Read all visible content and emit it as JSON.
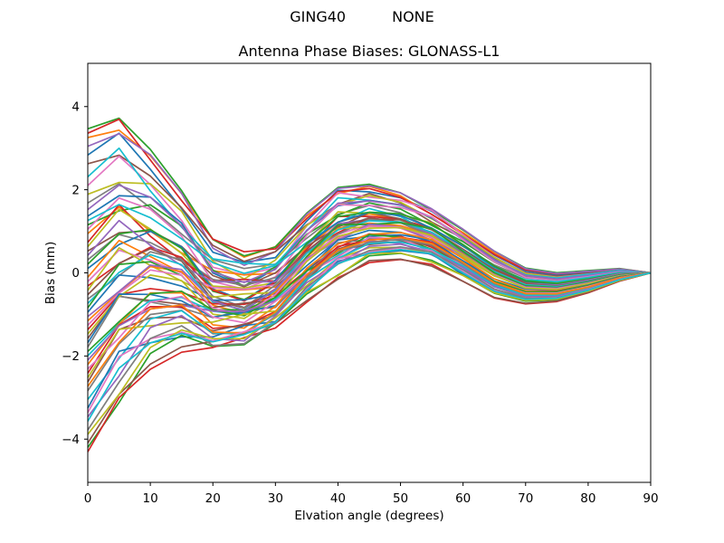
{
  "figure": {
    "suptitle_left": "GING40",
    "suptitle_right": "NONE",
    "title": "Antenna Phase Biases: GLONASS-L1"
  },
  "chart_data": {
    "type": "line",
    "title": "Antenna Phase Biases: GLONASS-L1",
    "suptitle": "GING40          NONE",
    "xlabel": "Elvation angle (degrees)",
    "ylabel": "Bias (mm)",
    "xlim": [
      0,
      90
    ],
    "ylim": [
      -5.04,
      5.04
    ],
    "xticks": [
      0,
      10,
      20,
      30,
      40,
      50,
      60,
      70,
      80,
      90
    ],
    "yticks": [
      -4,
      -2,
      0,
      2,
      4
    ],
    "grid": false,
    "legend": "none",
    "x": [
      0,
      5,
      10,
      15,
      20,
      25,
      30,
      35,
      40,
      45,
      50,
      55,
      60,
      65,
      70,
      75,
      80,
      85,
      90
    ],
    "series_model": "value[k] = base[k] + amp*spread[k] + w1*wiggle1[k] + w2*wiggle2[k]; all curves converge to 0.0 mm at 90 deg; estimated envelope: [-4.3,3.5] at 0 deg, peak 3.8 at 5 deg, trough band [-1.9,0.8] at 20-25 deg, bump band [0.3,2.1] at 40-50 deg, dip band [-0.7,0.1] at 65-75 deg",
    "profiles": {
      "base": [
        0.0,
        0.74,
        0.66,
        0.28,
        -0.39,
        -0.51,
        -0.26,
        0.51,
        1.13,
        1.31,
        1.24,
        0.97,
        0.51,
        0.04,
        -0.26,
        -0.3,
        -0.18,
        -0.03,
        0.0
      ],
      "spread": [
        1.05,
        0.92,
        0.68,
        0.49,
        0.36,
        0.29,
        0.26,
        0.27,
        0.28,
        0.24,
        0.2,
        0.16,
        0.15,
        0.14,
        0.11,
        0.09,
        0.07,
        0.04,
        0.0
      ],
      "wiggle1": [
        0.0,
        0.05,
        0.25,
        0.2,
        -0.15,
        -0.2,
        -0.05,
        0.15,
        0.2,
        0.1,
        0.15,
        0.2,
        0.15,
        0.1,
        0.05,
        0.03,
        0.02,
        0.01,
        0.0
      ],
      "wiggle2": [
        0.0,
        -0.3,
        0.2,
        0.3,
        0.1,
        -0.1,
        0.15,
        0.1,
        -0.1,
        0.1,
        0.05,
        -0.05,
        0.05,
        0.05,
        0.03,
        0.02,
        0.01,
        0.0,
        0.0
      ]
    },
    "series": [
      {
        "color": "#1f77b4",
        "amp": 2.7,
        "w1": 0.3,
        "w2": -0.4
      },
      {
        "color": "#ff7f0e",
        "amp": 3.1,
        "w1": -0.2,
        "w2": 0.5
      },
      {
        "color": "#2ca02c",
        "amp": 3.3,
        "w1": 0.1,
        "w2": 0.2
      },
      {
        "color": "#d62728",
        "amp": 3.2,
        "w1": -0.4,
        "w2": -0.1
      },
      {
        "color": "#9467bd",
        "amp": 2.9,
        "w1": 0.6,
        "w2": 0.3
      },
      {
        "color": "#8c564b",
        "amp": 2.5,
        "w1": -0.6,
        "w2": 0.6
      },
      {
        "color": "#e377c2",
        "amp": 2.0,
        "w1": 0.9,
        "w2": -0.6
      },
      {
        "color": "#7f7f7f",
        "amp": 1.6,
        "w1": -0.8,
        "w2": 0.1
      },
      {
        "color": "#bcbd22",
        "amp": 1.8,
        "w1": 0.4,
        "w2": 0.8
      },
      {
        "color": "#17becf",
        "amp": 2.2,
        "w1": -0.1,
        "w2": -0.8
      },
      {
        "color": "#1f77b4",
        "amp": 1.3,
        "w1": 0.8,
        "w2": 0.4
      },
      {
        "color": "#ff7f0e",
        "amp": 0.9,
        "w1": -0.9,
        "w2": -0.2
      },
      {
        "color": "#2ca02c",
        "amp": 1.1,
        "w1": 0.2,
        "w2": 0.9
      },
      {
        "color": "#d62728",
        "amp": 0.7,
        "w1": -0.3,
        "w2": -0.9
      },
      {
        "color": "#9467bd",
        "amp": 1.45,
        "w1": 0.7,
        "w2": 0.0
      },
      {
        "color": "#8c564b",
        "amp": 0.5,
        "w1": -0.5,
        "w2": 0.7
      },
      {
        "color": "#e377c2",
        "amp": 1.0,
        "w1": 1.0,
        "w2": -0.3
      },
      {
        "color": "#7f7f7f",
        "amp": 0.3,
        "w1": -0.7,
        "w2": 0.2
      },
      {
        "color": "#bcbd22",
        "amp": 0.6,
        "w1": 0.5,
        "w2": -0.7
      },
      {
        "color": "#17becf",
        "amp": 1.2,
        "w1": -1.0,
        "w2": 0.5
      },
      {
        "color": "#1f77b4",
        "amp": 0.1,
        "w1": 0.6,
        "w2": 0.6
      },
      {
        "color": "#ff7f0e",
        "amp": -0.1,
        "w1": -0.4,
        "w2": -0.5
      },
      {
        "color": "#2ca02c",
        "amp": 0.2,
        "w1": 0.9,
        "w2": 0.1
      },
      {
        "color": "#d62728",
        "amp": -0.3,
        "w1": 0.0,
        "w2": 0.8
      },
      {
        "color": "#9467bd",
        "amp": 0.4,
        "w1": -0.6,
        "w2": -0.6
      },
      {
        "color": "#8c564b",
        "amp": -0.5,
        "w1": 0.8,
        "w2": 0.3
      },
      {
        "color": "#e377c2",
        "amp": -0.2,
        "w1": -0.8,
        "w2": -0.1
      },
      {
        "color": "#7f7f7f",
        "amp": -0.6,
        "w1": 0.3,
        "w2": 0.9
      },
      {
        "color": "#bcbd22",
        "amp": -0.4,
        "w1": -0.2,
        "w2": -0.8
      },
      {
        "color": "#17becf",
        "amp": -0.7,
        "w1": 0.7,
        "w2": 0.4
      },
      {
        "color": "#1f77b4",
        "amp": -0.9,
        "w1": -0.5,
        "w2": -0.2
      },
      {
        "color": "#ff7f0e",
        "amp": -1.1,
        "w1": 0.4,
        "w2": 0.7
      },
      {
        "color": "#2ca02c",
        "amp": -0.8,
        "w1": 1.0,
        "w2": -0.5
      },
      {
        "color": "#d62728",
        "amp": -1.3,
        "w1": -0.7,
        "w2": 0.1
      },
      {
        "color": "#9467bd",
        "amp": -1.0,
        "w1": 0.1,
        "w2": 0.9
      },
      {
        "color": "#8c564b",
        "amp": -1.5,
        "w1": -0.9,
        "w2": -0.4
      },
      {
        "color": "#e377c2",
        "amp": -1.2,
        "w1": 0.5,
        "w2": 0.5
      },
      {
        "color": "#7f7f7f",
        "amp": -1.7,
        "w1": -0.1,
        "w2": -0.9
      },
      {
        "color": "#bcbd22",
        "amp": -1.4,
        "w1": 0.8,
        "w2": 0.2
      },
      {
        "color": "#17becf",
        "amp": -1.9,
        "w1": -0.6,
        "w2": 0.6
      },
      {
        "color": "#1f77b4",
        "amp": -1.6,
        "w1": 0.2,
        "w2": -0.7
      },
      {
        "color": "#ff7f0e",
        "amp": -2.1,
        "w1": 0.9,
        "w2": 0.3
      },
      {
        "color": "#2ca02c",
        "amp": -1.8,
        "w1": -0.4,
        "w2": 0.8
      },
      {
        "color": "#d62728",
        "amp": -2.3,
        "w1": 0.6,
        "w2": -0.3
      },
      {
        "color": "#9467bd",
        "amp": -2.0,
        "w1": -1.0,
        "w2": 0.4
      },
      {
        "color": "#8c564b",
        "amp": -2.5,
        "w1": 0.3,
        "w2": -0.6
      },
      {
        "color": "#e377c2",
        "amp": -2.2,
        "w1": -0.2,
        "w2": 0.9
      },
      {
        "color": "#7f7f7f",
        "amp": -2.7,
        "w1": 0.7,
        "w2": 0.0
      },
      {
        "color": "#bcbd22",
        "amp": -2.4,
        "w1": -0.8,
        "w2": -0.5
      },
      {
        "color": "#17becf",
        "amp": -2.9,
        "w1": 0.4,
        "w2": 0.5
      },
      {
        "color": "#1f77b4",
        "amp": -3.1,
        "w1": -0.3,
        "w2": -0.8
      },
      {
        "color": "#ff7f0e",
        "amp": -2.6,
        "w1": 0.8,
        "w2": 0.2
      },
      {
        "color": "#2ca02c",
        "amp": -4.0,
        "w1": 0.0,
        "w2": 0.6
      },
      {
        "color": "#d62728",
        "amp": -4.1,
        "w1": -0.6,
        "w2": -0.2
      },
      {
        "color": "#9467bd",
        "amp": -3.3,
        "w1": 0.5,
        "w2": 0.7
      },
      {
        "color": "#8c564b",
        "amp": -3.9,
        "w1": -0.9,
        "w2": 0.1
      },
      {
        "color": "#e377c2",
        "amp": -3.2,
        "w1": 0.2,
        "w2": -0.6
      },
      {
        "color": "#7f7f7f",
        "amp": -3.6,
        "w1": 0.6,
        "w2": 0.3
      },
      {
        "color": "#bcbd22",
        "amp": -3.7,
        "w1": -0.4,
        "w2": 0.8
      },
      {
        "color": "#17becf",
        "amp": -3.4,
        "w1": 0.1,
        "w2": -0.3
      }
    ],
    "style": {
      "line_width": 1.7,
      "axis_color": "#000000",
      "background": "#ffffff",
      "tick_font_px": 13.5,
      "label_font_px": 13.5,
      "title_font_px": 16
    }
  }
}
